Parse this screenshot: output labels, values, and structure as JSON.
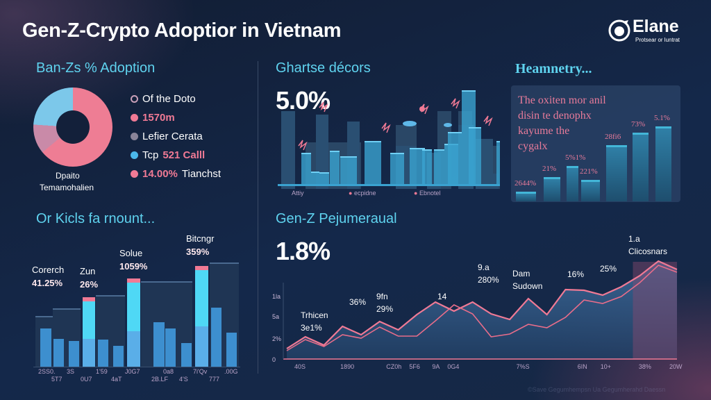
{
  "header": {
    "title": "Gen-Z-Crypto Adoptior in Vietnam",
    "logo_name": "Elane",
    "logo_tagline": "Protsear or luntrat"
  },
  "donut_panel": {
    "heading": "Ban-Zs % Adoption",
    "caption_line1": "Dpaito",
    "caption_line2": "Temamohalien",
    "legend": [
      {
        "icon": "flask-icon",
        "text": "Of the Doto",
        "color": "#c9a0b8"
      },
      {
        "icon": "dot",
        "text": "1570m",
        "color": "#f07a95"
      },
      {
        "icon": "dot",
        "text": "Lefier Cerata",
        "color": "#8a8499"
      },
      {
        "icon": "dot",
        "prefix": "Tcp ",
        "text": "521 Calll",
        "color": "#4bb8ea"
      },
      {
        "icon": "dot",
        "text": "14.00%",
        "suffix": " Tianchst",
        "color": "#f07a95"
      }
    ],
    "chart_data": {
      "type": "pie",
      "slices": [
        {
          "label": "pink",
          "value": 64,
          "color": "#ee7d94"
        },
        {
          "label": "mauve",
          "value": 12,
          "color": "#c98aa8"
        },
        {
          "label": "cyan",
          "value": 24,
          "color": "#7cc8ea"
        }
      ]
    }
  },
  "skyline_panel": {
    "heading": "Ghartse décors",
    "stat": "5.0%",
    "labels": [
      "Attiy",
      "ecpidne",
      "Ebnotel"
    ]
  },
  "heat_panel": {
    "heading": "Heamnetry...",
    "text_lines": [
      "The oxiten mor anil",
      "disin te denophx",
      "kayume the",
      "cygalx"
    ],
    "chart_data": {
      "type": "bar",
      "categories": [
        "2644%",
        "21%",
        "5%1%",
        "221%",
        "28fi6",
        "73%",
        "5.1%"
      ],
      "values": [
        14,
        35,
        51,
        31,
        81,
        99,
        108
      ]
    }
  },
  "bar_panel": {
    "heading": "Or Kicls fa rnount...",
    "annotations": [
      {
        "name": "Corerch",
        "value": "41.25%"
      },
      {
        "name": "Zun",
        "value": "26%"
      },
      {
        "name": "Solue",
        "value": "1059%"
      },
      {
        "name": "Bitcngr",
        "value": "359%"
      }
    ],
    "chart_data": {
      "type": "bar",
      "ylim": [
        0,
        100
      ],
      "background_values": [
        49,
        56,
        69,
        82,
        100
      ],
      "categories": [
        "2SS0.",
        "5T7",
        "3S",
        "0U7",
        "1'59",
        "4aT",
        "J0G7",
        "2B.LF",
        "0a8",
        "4'S",
        "7i'Qv",
        "777",
        ".00G"
      ],
      "values": [
        37,
        27,
        25,
        67,
        26,
        20,
        85,
        43,
        37,
        23,
        97,
        57,
        33
      ],
      "highlighted": [
        3,
        6,
        10
      ]
    }
  },
  "line_panel": {
    "heading": "Gen-Z Pejumeraual",
    "stat": "1.8%",
    "annotations": [
      {
        "label": "Trhicen",
        "value": "3e1%"
      },
      {
        "label": "",
        "value": "36%"
      },
      {
        "label": "9fn",
        "value": "29%"
      },
      {
        "label": "",
        "value": "14"
      },
      {
        "label": "9.a",
        "value": "280%"
      },
      {
        "label": "Dam",
        "value": "Sudown"
      },
      {
        "label": "",
        "value": "16%"
      },
      {
        "label": "",
        "value": "25%"
      },
      {
        "label": "1.a",
        "value": "Clicosnars"
      }
    ],
    "footer": "©Save Gegumhempsn Ua Gegumherahd Daessn",
    "chart_data": {
      "type": "area",
      "yticks": [
        "0",
        "2%",
        "5a",
        "1la"
      ],
      "ylim": [
        0,
        15
      ],
      "xticks": [
        "40S",
        "1890",
        "CZ0h",
        "5F6",
        "9A",
        "0G4",
        "7%S",
        "6IN",
        "10+",
        "38%",
        "20W"
      ],
      "series": [
        {
          "name": "upper",
          "color": "#f07a95",
          "values": [
            1.5,
            3.2,
            2.0,
            4.7,
            3.5,
            5.4,
            4.2,
            6.4,
            8.2,
            6.9,
            8.2,
            6.5,
            5.7,
            8.7,
            6.4,
            10.0,
            9.9,
            9.2,
            10.4,
            12.0,
            14.1,
            12.9
          ]
        },
        {
          "name": "lower",
          "color": "#e86d8a",
          "values": [
            1.2,
            2.8,
            1.8,
            3.5,
            3.0,
            4.6,
            3.3,
            3.3,
            5.5,
            7.8,
            6.5,
            3.2,
            3.6,
            5.0,
            4.5,
            6.0,
            8.5,
            8.0,
            9.0,
            11.0,
            13.5,
            12.5
          ]
        }
      ]
    }
  }
}
